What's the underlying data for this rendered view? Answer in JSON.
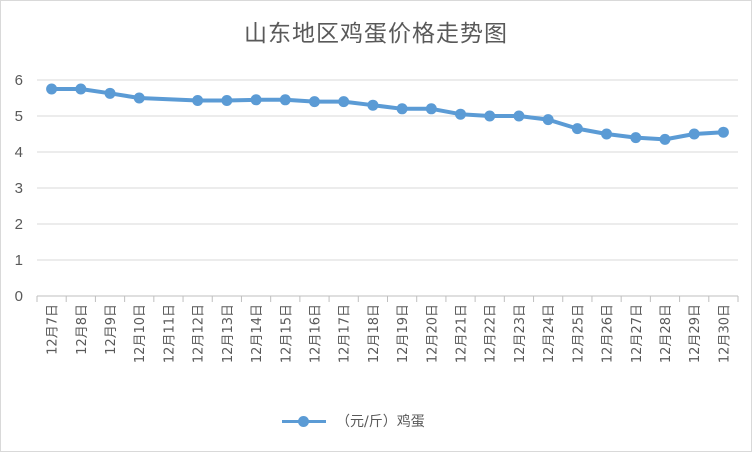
{
  "chart_data": {
    "type": "line",
    "title": "山东地区鸡蛋价格走势图",
    "categories": [
      "12月7日",
      "12月8日",
      "12月9日",
      "12月10日",
      "12月11日",
      "12月12日",
      "12月13日",
      "12月14日",
      "12月15日",
      "12月16日",
      "12月17日",
      "12月18日",
      "12月19日",
      "12月20日",
      "12月21日",
      "12月22日",
      "12月23日",
      "12月24日",
      "12月25日",
      "12月26日",
      "12月27日",
      "12月28日",
      "12月29日",
      "12月30日"
    ],
    "series": [
      {
        "name": "（元/斤）鸡蛋",
        "values": [
          5.75,
          5.75,
          5.63,
          5.5,
          null,
          5.43,
          5.43,
          5.45,
          5.45,
          5.4,
          5.4,
          5.3,
          5.2,
          5.2,
          5.05,
          5.0,
          5.0,
          4.9,
          4.65,
          4.5,
          4.4,
          4.35,
          4.5,
          4.55
        ],
        "color": "#5b9bd5"
      }
    ],
    "yticks": [
      0,
      1,
      2,
      3,
      4,
      5,
      6
    ],
    "ylim": [
      0,
      6
    ],
    "grid": true,
    "legend": "bottom"
  }
}
